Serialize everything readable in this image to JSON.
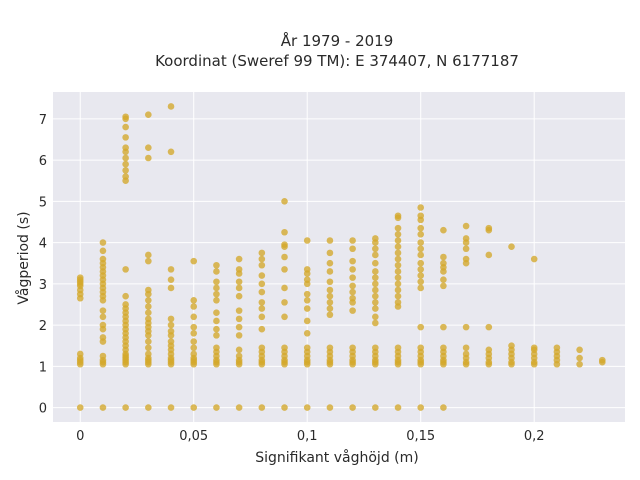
{
  "chart_data": {
    "type": "scatter",
    "title_line1": "År 1979 - 2019",
    "title_line2": "Koordinat (Sweref 99 TM): E 374407, N 6177187",
    "xlabel": "Signifikant våghöjd (m)",
    "ylabel": "Vågperiod (s)",
    "xlim": [
      -0.012,
      0.24
    ],
    "ylim": [
      -0.35,
      7.65
    ],
    "x_ticks": [
      0,
      0.05,
      0.1,
      0.15,
      0.2
    ],
    "x_tick_labels": [
      "0",
      "0,05",
      "0,1",
      "0,15",
      "0,2"
    ],
    "y_ticks": [
      0,
      1,
      2,
      3,
      4,
      5,
      6,
      7
    ],
    "y_tick_labels": [
      "0",
      "1",
      "2",
      "3",
      "4",
      "5",
      "6",
      "7"
    ],
    "grid": true,
    "colors": {
      "plot_bg": "#e8e8ef",
      "grid": "#ffffff",
      "marker": "#d4a82a"
    },
    "columns": [
      {
        "x": 0.0,
        "y": [
          0,
          1.05,
          1.1,
          1.15,
          1.2,
          1.3,
          2.65,
          2.75,
          2.85,
          2.95,
          3.0,
          3.05,
          3.1,
          3.15
        ]
      },
      {
        "x": 0.01,
        "y": [
          0,
          1.05,
          1.1,
          1.15,
          1.25,
          1.6,
          1.7,
          1.9,
          2.0,
          2.2,
          2.35,
          2.6,
          2.7,
          2.8,
          2.9,
          3.0,
          3.1,
          3.2,
          3.3,
          3.4,
          3.5,
          3.6,
          3.8,
          4.0
        ]
      },
      {
        "x": 0.02,
        "y": [
          0,
          1.05,
          1.1,
          1.15,
          1.2,
          1.25,
          1.3,
          1.4,
          1.5,
          1.6,
          1.7,
          1.8,
          1.9,
          2.0,
          2.1,
          2.2,
          2.3,
          2.4,
          2.5,
          2.7,
          3.35,
          5.5,
          5.6,
          5.75,
          5.9,
          6.05,
          6.2,
          6.3,
          6.55,
          6.8,
          7.0,
          7.05
        ]
      },
      {
        "x": 0.03,
        "y": [
          0,
          1.05,
          1.1,
          1.15,
          1.2,
          1.3,
          1.45,
          1.6,
          1.75,
          1.85,
          1.95,
          2.05,
          2.15,
          2.3,
          2.45,
          2.6,
          2.75,
          2.85,
          3.55,
          3.7,
          6.05,
          6.3,
          7.1
        ]
      },
      {
        "x": 0.04,
        "y": [
          0,
          1.05,
          1.1,
          1.15,
          1.2,
          1.3,
          1.4,
          1.5,
          1.6,
          1.75,
          1.85,
          2.0,
          2.15,
          2.9,
          3.1,
          3.35,
          6.2,
          7.3
        ]
      },
      {
        "x": 0.05,
        "y": [
          0,
          1.05,
          1.1,
          1.15,
          1.2,
          1.3,
          1.45,
          1.6,
          1.8,
          1.95,
          2.2,
          2.45,
          2.6,
          3.55
        ]
      },
      {
        "x": 0.06,
        "y": [
          0,
          1.05,
          1.1,
          1.15,
          1.25,
          1.35,
          1.45,
          1.75,
          1.9,
          2.1,
          2.3,
          2.6,
          2.75,
          2.9,
          3.05,
          3.3,
          3.45
        ]
      },
      {
        "x": 0.07,
        "y": [
          0,
          1.05,
          1.1,
          1.15,
          1.25,
          1.4,
          1.75,
          1.95,
          2.15,
          2.35,
          2.7,
          2.9,
          3.05,
          3.25,
          3.35,
          3.6
        ]
      },
      {
        "x": 0.08,
        "y": [
          0,
          1.05,
          1.1,
          1.15,
          1.25,
          1.35,
          1.45,
          1.9,
          2.2,
          2.4,
          2.55,
          2.8,
          3.0,
          3.2,
          3.45,
          3.6,
          3.75
        ]
      },
      {
        "x": 0.09,
        "y": [
          0,
          1.05,
          1.1,
          1.15,
          1.25,
          1.35,
          1.45,
          2.2,
          2.55,
          2.9,
          3.35,
          3.65,
          3.9,
          3.95,
          4.25,
          5.0
        ]
      },
      {
        "x": 0.1,
        "y": [
          0,
          1.05,
          1.1,
          1.15,
          1.25,
          1.35,
          1.45,
          1.8,
          2.1,
          2.4,
          2.6,
          2.75,
          3.0,
          3.1,
          3.25,
          3.35,
          4.05
        ]
      },
      {
        "x": 0.11,
        "y": [
          0,
          1.05,
          1.1,
          1.15,
          1.25,
          1.35,
          1.45,
          2.25,
          2.4,
          2.55,
          2.7,
          2.85,
          3.05,
          3.3,
          3.5,
          3.75,
          4.05
        ]
      },
      {
        "x": 0.12,
        "y": [
          0,
          1.05,
          1.1,
          1.15,
          1.25,
          1.35,
          1.45,
          2.35,
          2.55,
          2.65,
          2.8,
          2.95,
          3.15,
          3.35,
          3.55,
          3.85,
          4.05
        ]
      },
      {
        "x": 0.13,
        "y": [
          0,
          1.05,
          1.1,
          1.15,
          1.25,
          1.35,
          1.45,
          2.05,
          2.2,
          2.4,
          2.55,
          2.7,
          2.85,
          3.0,
          3.15,
          3.3,
          3.5,
          3.7,
          3.85,
          4.0,
          4.1
        ]
      },
      {
        "x": 0.14,
        "y": [
          0,
          1.05,
          1.1,
          1.15,
          1.25,
          1.35,
          1.45,
          2.45,
          2.55,
          2.7,
          2.85,
          3.0,
          3.15,
          3.3,
          3.45,
          3.6,
          3.75,
          3.9,
          4.05,
          4.2,
          4.35,
          4.6,
          4.65
        ]
      },
      {
        "x": 0.15,
        "y": [
          0,
          1.05,
          1.1,
          1.15,
          1.25,
          1.35,
          1.45,
          1.95,
          2.9,
          3.05,
          3.2,
          3.35,
          3.5,
          3.7,
          3.85,
          4.0,
          4.2,
          4.35,
          4.55,
          4.65,
          4.85
        ]
      },
      {
        "x": 0.16,
        "y": [
          0,
          1.05,
          1.1,
          1.15,
          1.25,
          1.35,
          1.45,
          1.95,
          2.95,
          3.1,
          3.3,
          3.4,
          3.5,
          3.65,
          4.3
        ]
      },
      {
        "x": 0.17,
        "y": [
          1.05,
          1.1,
          1.2,
          1.3,
          1.45,
          1.95,
          3.5,
          3.6,
          3.85,
          4.0,
          4.1,
          4.4
        ]
      },
      {
        "x": 0.18,
        "y": [
          1.05,
          1.1,
          1.2,
          1.3,
          1.4,
          1.95,
          3.7,
          4.3,
          4.35
        ]
      },
      {
        "x": 0.19,
        "y": [
          1.05,
          1.1,
          1.2,
          1.3,
          1.4,
          1.5,
          3.9
        ]
      },
      {
        "x": 0.2,
        "y": [
          1.05,
          1.1,
          1.2,
          1.3,
          1.4,
          1.45,
          3.6
        ]
      },
      {
        "x": 0.21,
        "y": [
          1.05,
          1.15,
          1.25,
          1.35,
          1.45
        ]
      },
      {
        "x": 0.22,
        "y": [
          1.05,
          1.2,
          1.4
        ]
      },
      {
        "x": 0.23,
        "y": [
          1.1,
          1.15
        ]
      }
    ]
  }
}
